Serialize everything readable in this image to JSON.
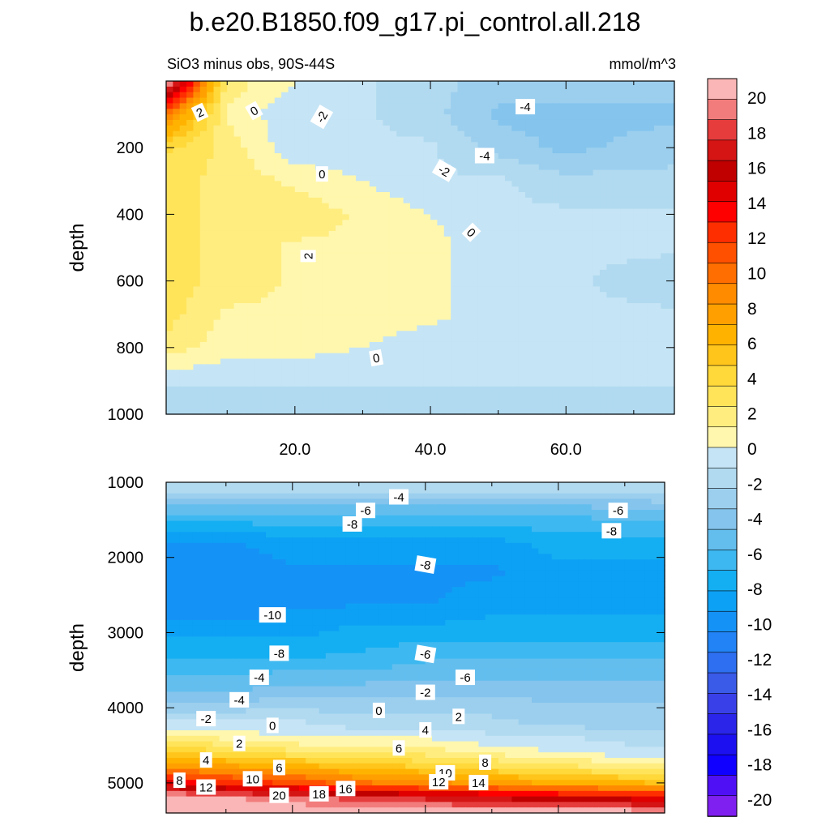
{
  "title": "b.e20.B1850.f09_g17.pi_control.all.218",
  "subtitle_left": "SiO3 minus obs, 90S-44S",
  "subtitle_right": "mmol/m^3",
  "chart_data": [
    {
      "type": "heatmap",
      "panel": "upper",
      "ylabel": "depth",
      "xlabel": "",
      "xlim": [
        1,
        76
      ],
      "ylim": [
        1000,
        0
      ],
      "yticks": [
        "200",
        "400",
        "600",
        "800",
        "1000"
      ],
      "xticks": [
        "20.0",
        "40.0",
        "60.0"
      ],
      "contour_labels": [
        "2",
        "0",
        "-2",
        "-4",
        "-4",
        "-2",
        "0",
        "0",
        "2",
        "0"
      ],
      "x": [
        1,
        10,
        20,
        30,
        40,
        50,
        60,
        76
      ],
      "y": [
        0,
        100,
        200,
        300,
        400,
        500,
        600,
        700,
        800,
        900,
        1000
      ],
      "z": [
        [
          22,
          2,
          0,
          -1,
          -2,
          -3,
          -3,
          -3
        ],
        [
          10,
          1,
          -1,
          -1,
          -2,
          -4,
          -4,
          -4
        ],
        [
          4,
          2,
          -1,
          -1,
          -1,
          -3,
          -4,
          -3
        ],
        [
          3,
          2,
          1,
          0,
          -1,
          -1,
          -2,
          -2
        ],
        [
          3,
          2,
          2,
          1,
          0,
          -1,
          -1,
          -1
        ],
        [
          3,
          2,
          1,
          1,
          0.5,
          -1,
          -1,
          -1
        ],
        [
          3,
          2,
          1,
          1,
          0.5,
          -1,
          -1,
          -2
        ],
        [
          3,
          1,
          1,
          1,
          0.5,
          -1,
          -1,
          -1
        ],
        [
          2,
          0.5,
          0.5,
          0,
          -1,
          -1,
          -1,
          -1
        ],
        [
          -1,
          -1,
          -1,
          -1,
          -1,
          -1,
          -1,
          -1
        ],
        [
          -2,
          -2,
          -2,
          -2,
          -2,
          -2,
          -2,
          -2
        ]
      ]
    },
    {
      "type": "heatmap",
      "panel": "lower",
      "ylabel": "depth",
      "xlabel": "",
      "xlim": [
        1,
        76
      ],
      "ylim": [
        5400,
        1000
      ],
      "yticks": [
        "1000",
        "2000",
        "3000",
        "4000",
        "5000"
      ],
      "contour_labels": [
        "-4",
        "-6",
        "-8",
        "-6",
        "-8",
        "-10",
        "-8",
        "-8",
        "-6",
        "-6",
        "-4",
        "-4",
        "-2",
        "-2",
        "0",
        "0",
        "2",
        "2",
        "4",
        "4",
        "6",
        "6",
        "8",
        "8",
        "10",
        "10",
        "12",
        "12",
        "14",
        "16",
        "18",
        "20"
      ],
      "x": [
        1,
        10,
        20,
        30,
        40,
        50,
        60,
        76
      ],
      "y": [
        1000,
        1400,
        1800,
        2200,
        2600,
        3000,
        3400,
        3800,
        4200,
        4400,
        4600,
        4800,
        5000,
        5200,
        5400
      ],
      "z": [
        [
          -1,
          -1,
          -1,
          -1,
          -1,
          -1,
          -1,
          -1
        ],
        [
          -6,
          -6,
          -6,
          -6,
          -6,
          -6,
          -6,
          -5
        ],
        [
          -10,
          -10,
          -9,
          -9,
          -9,
          -9,
          -8,
          -8
        ],
        [
          -11,
          -11,
          -10,
          -10,
          -10,
          -10,
          -9,
          -9
        ],
        [
          -11,
          -11,
          -10,
          -10,
          -10,
          -9,
          -9,
          -9
        ],
        [
          -9,
          -9,
          -9,
          -8,
          -8,
          -8,
          -8,
          -8
        ],
        [
          -7,
          -7,
          -7,
          -7,
          -6,
          -6,
          -6,
          -6
        ],
        [
          -5,
          -5,
          -4,
          -4,
          -4,
          -4,
          -4,
          -4
        ],
        [
          -1,
          -1,
          -1,
          -2,
          -2,
          -2,
          -3,
          -3
        ],
        [
          2,
          1,
          0,
          0,
          0,
          -1,
          -1,
          -2
        ],
        [
          5,
          4,
          3,
          2,
          2,
          1,
          0,
          -1
        ],
        [
          9,
          8,
          7,
          6,
          5,
          4,
          3,
          2
        ],
        [
          15,
          13,
          12,
          10,
          9,
          8,
          7,
          6
        ],
        [
          22,
          21,
          20,
          19,
          18,
          17,
          16,
          15
        ],
        [
          22,
          22,
          22,
          22,
          22,
          22,
          22,
          22
        ]
      ]
    }
  ],
  "colorbar": {
    "levels": [
      "20",
      "18",
      "16",
      "14",
      "12",
      "10",
      "8",
      "6",
      "4",
      "2",
      "0",
      "-2",
      "-4",
      "-6",
      "-8",
      "-10",
      "-12",
      "-14",
      "-16",
      "-18",
      "-20"
    ],
    "colors": [
      "#fab6b6",
      "#f27c7c",
      "#e63c3c",
      "#d51414",
      "#c00000",
      "#e00000",
      "#ff0000",
      "#ff2e00",
      "#ff5000",
      "#ff6e00",
      "#ff8c00",
      "#ffa000",
      "#ffb300",
      "#ffc51a",
      "#ffd83a",
      "#ffe45a",
      "#ffed80",
      "#fff7ad",
      "#c5e4f5",
      "#b1daf0",
      "#9ccfee",
      "#84c4ed",
      "#63beee",
      "#3eb8f0",
      "#14aff2",
      "#0da1f5",
      "#1592f5",
      "#2183f5",
      "#2d6ff0",
      "#3a5ae8",
      "#3a40e8",
      "#2a25e8",
      "#1c10f0",
      "#1000ff",
      "#4f10f5",
      "#7f1ff0"
    ]
  }
}
